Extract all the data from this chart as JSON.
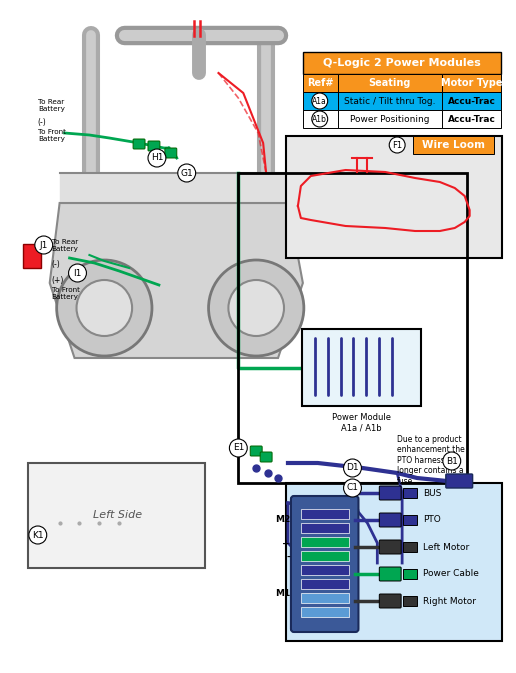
{
  "title": "Q-Logic 2 Power Modules",
  "table_header_bg": "#F7941D",
  "table_subheader_bg": "#F7941D",
  "table_row1_bg": "#00AEEF",
  "table_row2_bg": "#FFFFFF",
  "table_border": "#000000",
  "table_text_color": "#000000",
  "table_header_text": "Q-Logic 2 Power Modules",
  "col1_header": "Ref#",
  "col2_header": "Seating",
  "col3_header": "Motor Type",
  "row1_ref": "A1a",
  "row1_seating": "Static / Tilt thru Tog.",
  "row1_motor": "Accu-Trac",
  "row2_ref": "A1b",
  "row2_seating": "Power Positioning",
  "row2_motor": "Accu-Trac",
  "wire_loom_label": "Wire Loom",
  "wire_loom_bg": "#F7941D",
  "wire_loom_ref": "F1",
  "inset_ref": "B1",
  "label_h1": "H1",
  "label_g1": "G1",
  "label_i1": "I1",
  "label_j1": "J1",
  "label_k1": "K1",
  "label_e1": "E1",
  "label_d1": "D1",
  "label_c1": "C1",
  "label_power_module": "Power Module\nA1a / A1b",
  "label_left_side": "Left Side",
  "label_to_rear_battery_top": "To Rear\nBattery",
  "label_to_front_battery_top": "To Front\nBattery",
  "label_to_rear_battery_mid": "To Rear\nBattery",
  "label_to_front_battery_mid": "To Front\nBattery",
  "label_minus": "(-)",
  "label_plus": "(+)",
  "label_minus2": "(-)",
  "label_plus2": "(+)",
  "connector_diagram_labels": [
    "BUS",
    "PTO",
    "Left Motor",
    "Power Cable",
    "Right Motor"
  ],
  "connector_m1": "M1",
  "connector_m2": "M2",
  "connector_minus": "-",
  "connector_plus": "+",
  "note_text": "Due to a product\nenhancement the\nPTO harness no\nlonger contains a\nfuse.",
  "bg_color": "#FFFFFF",
  "diagram_line_color_green": "#00A651",
  "diagram_line_color_blue": "#2E3192",
  "diagram_line_color_red": "#ED1C24",
  "diagram_line_color_black": "#000000",
  "diagram_line_color_gray": "#808080",
  "inset_box_bg": "#E8E8E8",
  "inset_connector_bg": "#D0E8F8"
}
